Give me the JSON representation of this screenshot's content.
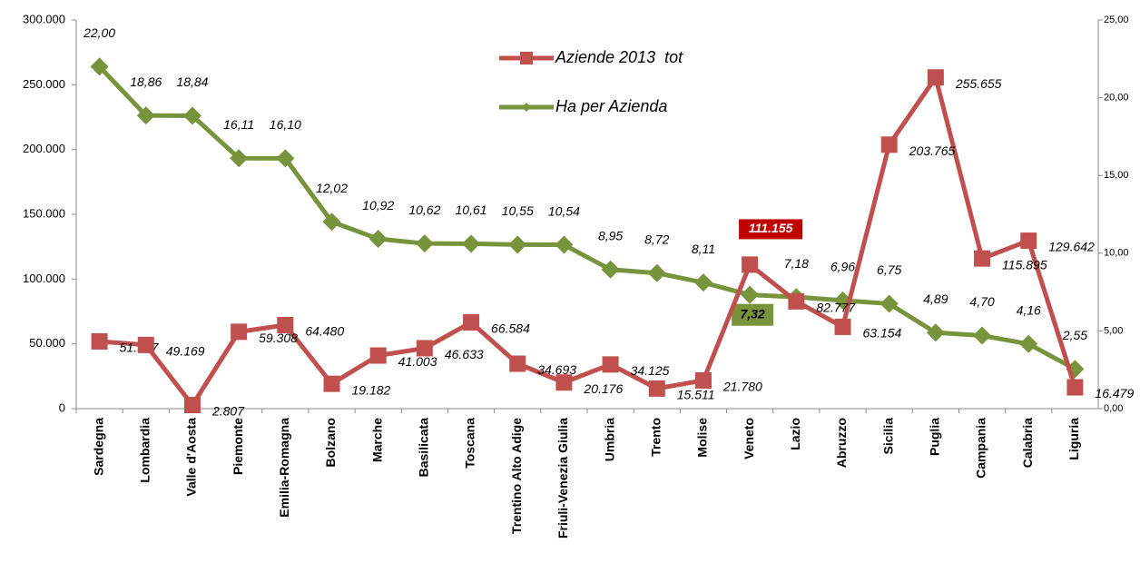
{
  "chart_data": {
    "type": "line",
    "categories": [
      "Sardegna",
      "Lombardia",
      "Valle d'Aosta",
      "Piemonte",
      "Emilia-Romagna",
      "Bolzano",
      "Marche",
      "Basilicata",
      "Toscana",
      "Trentino Alto Adige",
      "Friuli-Venezia Giulia",
      "Umbria",
      "Trento",
      "Molise",
      "Veneto",
      "Lazio",
      "Abruzzo",
      "Sicilia",
      "Puglia",
      "Campania",
      "Calabria",
      "Liguria"
    ],
    "series": [
      {
        "name": "Aziende 2013  tot",
        "color": "#c0504d",
        "axis": "y",
        "values": [
          51907,
          49169,
          2807,
          59308,
          64480,
          19182,
          41003,
          46633,
          66584,
          34693,
          20176,
          34125,
          15511,
          21780,
          111155,
          82777,
          63154,
          203765,
          255655,
          115895,
          129642,
          16479
        ],
        "value_labels": [
          "51.907",
          "49.169",
          "2.807",
          "59.308",
          "64.480",
          "19.182",
          "41.003",
          "46.633",
          "66.584",
          "34.693",
          "20.176",
          "34.125",
          "15.511",
          "21.780",
          "111.155",
          "82.777",
          "63.154",
          "203.765",
          "255.655",
          "115.895",
          "129.642",
          "16.479"
        ]
      },
      {
        "name": "Ha per Azienda",
        "color": "#77933c",
        "axis": "y2",
        "values": [
          22.0,
          18.86,
          18.84,
          16.11,
          16.1,
          12.02,
          10.92,
          10.62,
          10.61,
          10.55,
          10.54,
          8.95,
          8.72,
          8.11,
          7.32,
          7.18,
          6.96,
          6.75,
          4.89,
          4.7,
          4.16,
          2.55
        ],
        "value_labels": [
          "22,00",
          "18,86",
          "18,84",
          "16,11",
          "16,10",
          "12,02",
          "10,92",
          "10,62",
          "10,61",
          "10,55",
          "10,54",
          "8,95",
          "8,72",
          "8,11",
          "7,32",
          "7,18",
          "6,96",
          "6,75",
          "4,89",
          "4,70",
          "4,16",
          "2,55"
        ]
      }
    ],
    "ylim": [
      0,
      300000
    ],
    "yticks": [
      0,
      {
        "value": 50000,
        "label": "50.000"
      },
      {
        "value": 100000,
        "label": "100.000"
      },
      {
        "value": 150000,
        "label": "150.000"
      },
      {
        "value": 200000,
        "label": "200.000"
      },
      {
        "value": 250000,
        "label": "250.000"
      },
      {
        "value": 300000,
        "label": "300.000"
      }
    ],
    "y2lim": [
      0,
      25
    ],
    "y2ticks": [
      {
        "value": 0,
        "label": "0,00"
      },
      {
        "value": 5,
        "label": "5,00"
      },
      {
        "value": 10,
        "label": "10,00"
      },
      {
        "value": 15,
        "label": "15,00"
      },
      {
        "value": 20,
        "label": "20,00"
      },
      {
        "value": 25,
        "label": "25,00"
      }
    ],
    "legend": "top-center"
  }
}
